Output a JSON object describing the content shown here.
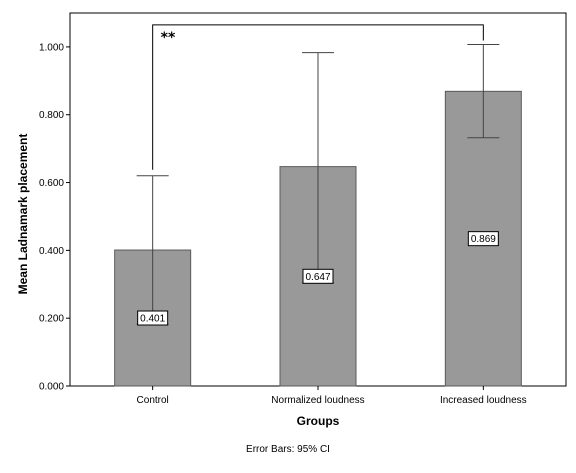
{
  "chart_data": {
    "type": "bar",
    "categories": [
      "Control",
      "Normalized loudness",
      "Increased loudness"
    ],
    "values": [
      0.401,
      0.647,
      0.869
    ],
    "value_labels": [
      "0.401",
      "0.647",
      "0.869"
    ],
    "error_bars": [
      {
        "low": 0.182,
        "high": 0.62
      },
      {
        "low": 0.305,
        "high": 0.983
      },
      {
        "low": 0.732,
        "high": 1.007
      }
    ],
    "xlabel": "Groups",
    "ylabel": "Mean Ladnamark placement",
    "ylim": [
      0,
      1.1
    ],
    "yticks": [
      0.0,
      0.2,
      0.4,
      0.6,
      0.8,
      1.0
    ],
    "ytick_labels": [
      "0.000",
      "0.200",
      "0.400",
      "0.600",
      "0.800",
      "1.000"
    ],
    "footnote": "Error Bars: 95% CI",
    "significance": {
      "from": "Control",
      "to": "Increased loudness",
      "label": "**",
      "level": 1.065
    },
    "colors": {
      "bar_fill": "#999999",
      "bar_stroke": "#5a5a5a",
      "axis": "#000000",
      "error_bar": "#444444"
    },
    "grid": false
  }
}
